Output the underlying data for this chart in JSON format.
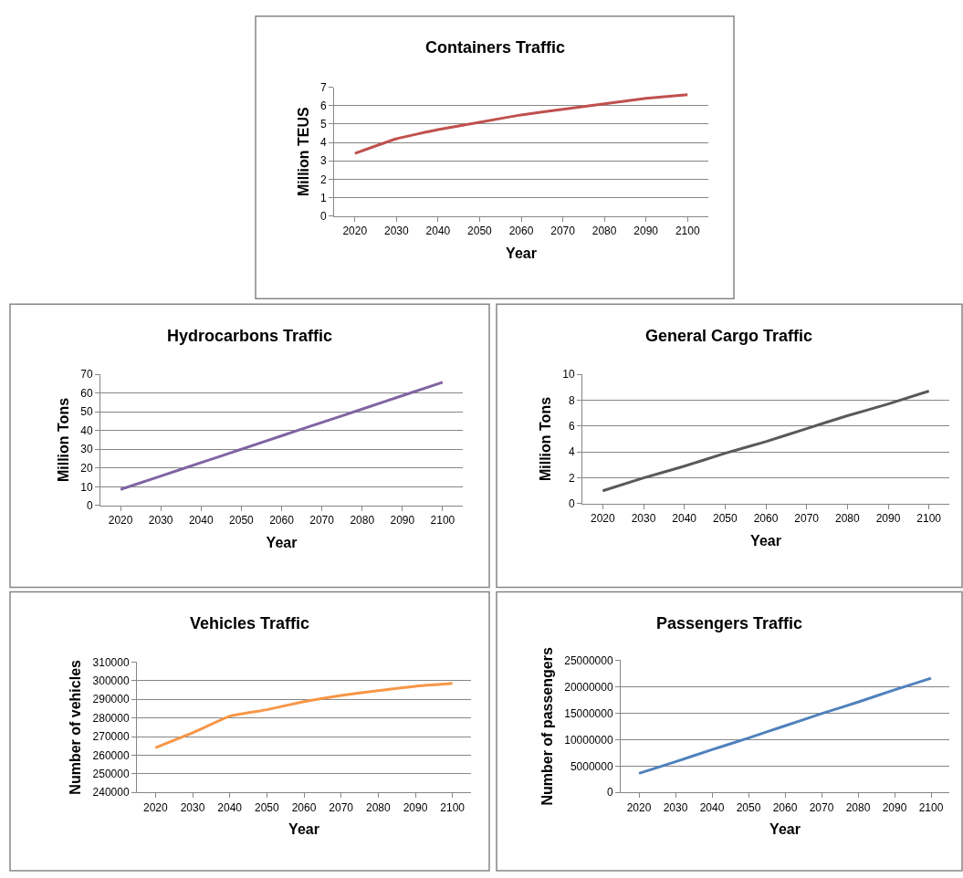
{
  "chart_data": [
    {
      "type": "line",
      "title": "Containers Traffic",
      "xlabel": "Year",
      "ylabel": "Million TEUS",
      "categories": [
        "2020",
        "2030",
        "2040",
        "2050",
        "2060",
        "2070",
        "2080",
        "2090",
        "2100"
      ],
      "series": [
        {
          "color": "#c0504d",
          "values": [
            3.4,
            4.2,
            4.7,
            5.1,
            5.5,
            5.8,
            6.1,
            6.4,
            6.6
          ]
        }
      ],
      "ylim": [
        0,
        7
      ],
      "yticks": [
        0,
        1,
        2,
        3,
        4,
        5,
        6,
        7
      ],
      "grid": "y"
    },
    {
      "type": "line",
      "title": "Hydrocarbons Traffic",
      "xlabel": "Year",
      "ylabel": "Million Tons",
      "categories": [
        "2020",
        "2030",
        "2040",
        "2050",
        "2060",
        "2070",
        "2080",
        "2090",
        "2100"
      ],
      "series": [
        {
          "color": "#8064a2",
          "values": [
            8.6,
            15.7,
            22.9,
            30,
            37.2,
            44.3,
            51.4,
            58.6,
            65.7
          ]
        }
      ],
      "ylim": [
        0,
        70
      ],
      "yticks": [
        0,
        10,
        20,
        30,
        40,
        50,
        60,
        70
      ],
      "grid": "y"
    },
    {
      "type": "line",
      "title": "General Cargo Traffic",
      "xlabel": "Year",
      "ylabel": "Million Tons",
      "categories": [
        "2020",
        "2030",
        "2040",
        "2050",
        "2060",
        "2070",
        "2080",
        "2090",
        "2100"
      ],
      "series": [
        {
          "color": "#595959",
          "values": [
            1.0,
            2.0,
            2.9,
            3.9,
            4.8,
            5.8,
            6.8,
            7.7,
            8.7
          ]
        }
      ],
      "ylim": [
        0,
        10
      ],
      "yticks": [
        0,
        2,
        4,
        6,
        8,
        10
      ],
      "grid": "y"
    },
    {
      "type": "line",
      "title": "Vehicles Traffic",
      "xlabel": "Year",
      "ylabel": "Number of vehicles",
      "categories": [
        "2020",
        "2030",
        "2040",
        "2050",
        "2060",
        "2070",
        "2080",
        "2090",
        "2100"
      ],
      "series": [
        {
          "color": "#f79646",
          "values": [
            264000,
            272000,
            281000,
            284400,
            288800,
            292100,
            294600,
            297000,
            298500
          ]
        }
      ],
      "ylim": [
        240000,
        310000
      ],
      "yticks": [
        240000,
        250000,
        260000,
        270000,
        280000,
        290000,
        300000,
        310000
      ],
      "grid": "y"
    },
    {
      "type": "line",
      "title": "Passengers Traffic",
      "xlabel": "Year",
      "ylabel": "Number of passengers",
      "categories": [
        "2020",
        "2030",
        "2040",
        "2050",
        "2060",
        "2070",
        "2080",
        "2090",
        "2100"
      ],
      "series": [
        {
          "color": "#4f81bd",
          "values": [
            3600000,
            5800000,
            8100000,
            10300000,
            12600000,
            14900000,
            17100000,
            19400000,
            21600000
          ]
        }
      ],
      "ylim": [
        0,
        25000000
      ],
      "yticks": [
        0,
        5000000,
        10000000,
        15000000,
        20000000,
        25000000
      ],
      "grid": "y"
    }
  ]
}
